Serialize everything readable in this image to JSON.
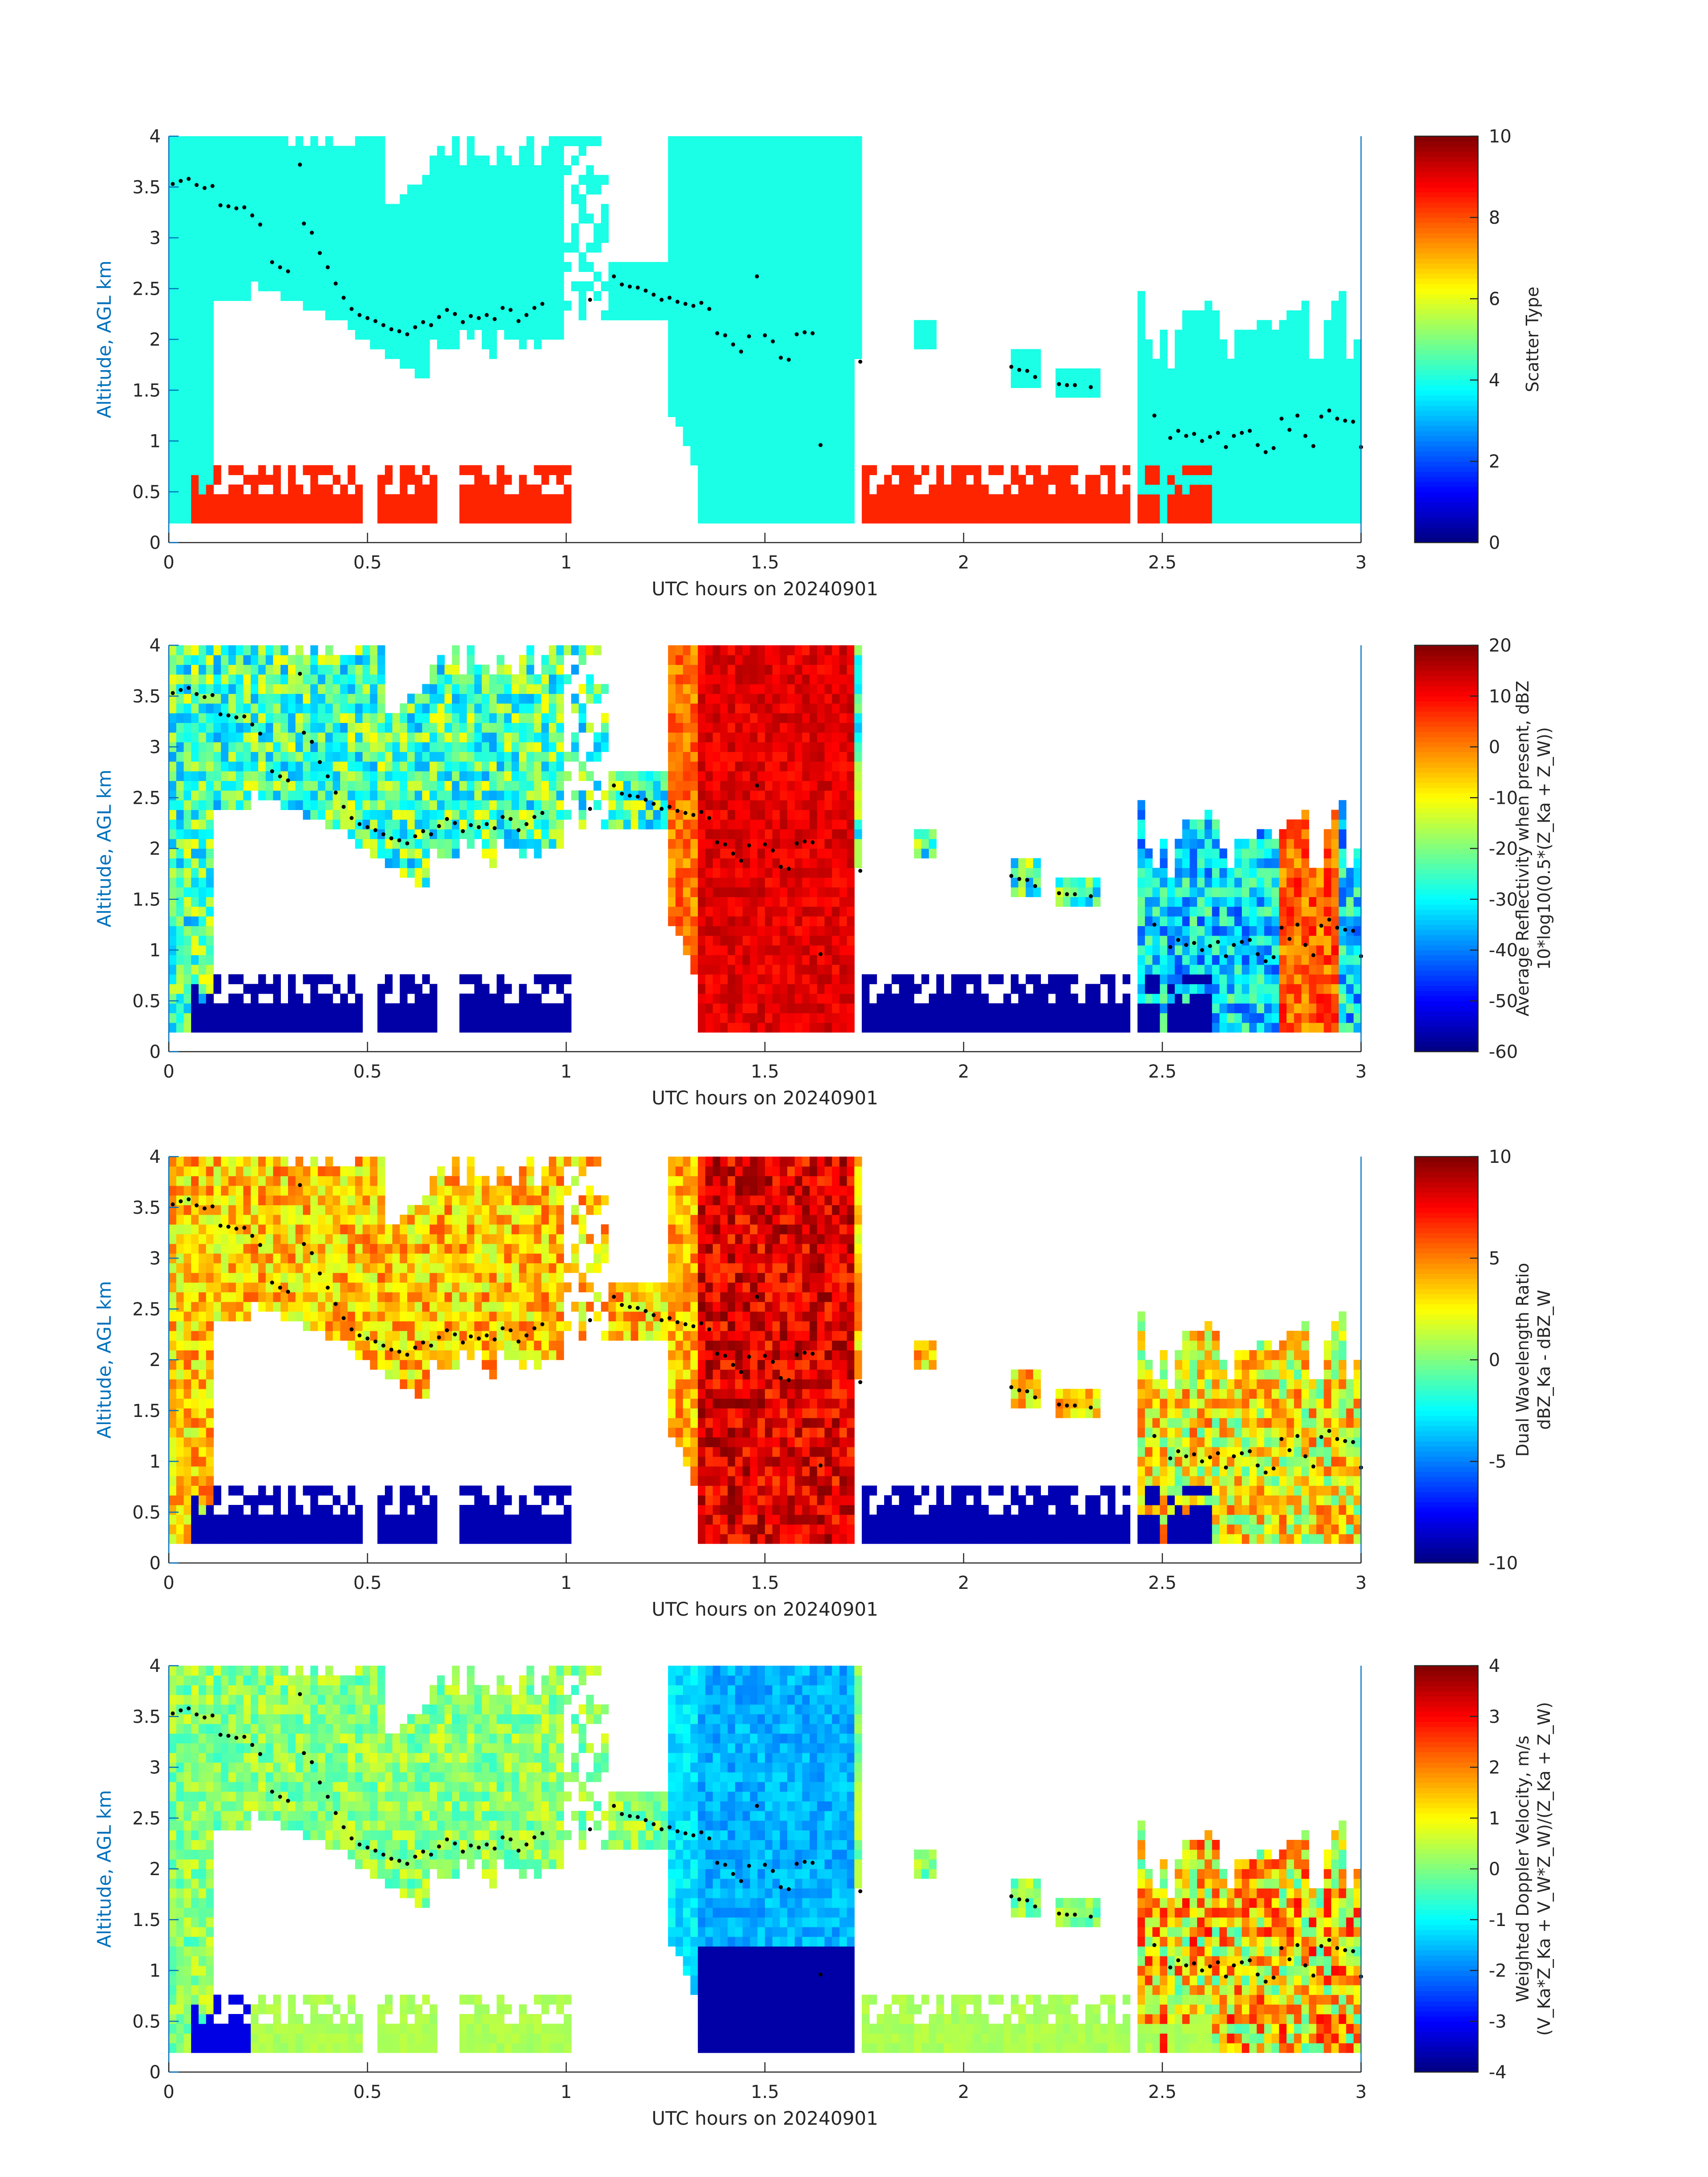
{
  "chart_data": [
    {
      "type": "heatmap",
      "xlabel": "UTC hours on 20240901",
      "ylabel": "Altitude, AGL km",
      "xlim": [
        0,
        3
      ],
      "ylim": [
        0,
        4
      ],
      "xticks": [
        "0",
        "0.5",
        "1",
        "1.5",
        "2",
        "2.5",
        "3"
      ],
      "yticks": [
        "0",
        "0.5",
        "1",
        "1.5",
        "2",
        "2.5",
        "3",
        "3.5",
        "4"
      ],
      "colorbar": {
        "label_lines": [
          "Scatter Type"
        ],
        "limits": [
          0,
          10
        ],
        "ticks": [
          "0",
          "2",
          "4",
          "6",
          "8",
          "10"
        ]
      },
      "field": "scatter"
    },
    {
      "type": "heatmap",
      "xlabel": "UTC hours on 20240901",
      "ylabel": "Altitude, AGL km",
      "xlim": [
        0,
        3
      ],
      "ylim": [
        0,
        4
      ],
      "xticks": [
        "0",
        "0.5",
        "1",
        "1.5",
        "2",
        "2.5",
        "3"
      ],
      "yticks": [
        "0",
        "0.5",
        "1",
        "1.5",
        "2",
        "2.5",
        "3",
        "3.5",
        "4"
      ],
      "colorbar": {
        "label_lines": [
          "Average Reflectivity when present, dBZ",
          "10*log10(0.5*(Z_Ka + Z_W))"
        ],
        "limits": [
          -60,
          20
        ],
        "ticks": [
          "-60",
          "-50",
          "-40",
          "-30",
          "-20",
          "-10",
          "0",
          "10",
          "20"
        ]
      },
      "field": "reflectivity"
    },
    {
      "type": "heatmap",
      "xlabel": "UTC hours on 20240901",
      "ylabel": "Altitude, AGL km",
      "xlim": [
        0,
        3
      ],
      "ylim": [
        0,
        4
      ],
      "xticks": [
        "0",
        "0.5",
        "1",
        "1.5",
        "2",
        "2.5",
        "3"
      ],
      "yticks": [
        "0",
        "0.5",
        "1",
        "1.5",
        "2",
        "2.5",
        "3",
        "3.5",
        "4"
      ],
      "colorbar": {
        "label_lines": [
          "Dual Wavelength Ratio",
          "dBZ_Ka - dBZ_W"
        ],
        "limits": [
          -10,
          10
        ],
        "ticks": [
          "-10",
          "-5",
          "0",
          "5",
          "10"
        ]
      },
      "field": "dwr"
    },
    {
      "type": "heatmap",
      "xlabel": "UTC hours on 20240901",
      "ylabel": "Altitude, AGL km",
      "xlim": [
        0,
        3
      ],
      "ylim": [
        0,
        4
      ],
      "xticks": [
        "0",
        "0.5",
        "1",
        "1.5",
        "2",
        "2.5",
        "3"
      ],
      "yticks": [
        "0",
        "0.5",
        "1",
        "1.5",
        "2",
        "2.5",
        "3",
        "3.5",
        "4"
      ],
      "colorbar": {
        "label_lines": [
          "Weighted Doppler Velocity, m/s",
          "(V_Ka*Z_Ka + V_W*Z_W)/(Z_Ka + Z_W)"
        ],
        "limits": [
          -4,
          4
        ],
        "ticks": [
          "-4",
          "-3",
          "-2",
          "-1",
          "0",
          "1",
          "2",
          "3",
          "4"
        ]
      },
      "field": "velocity"
    }
  ],
  "cloud_top_points": [
    [
      0.01,
      3.53
    ],
    [
      0.03,
      3.56
    ],
    [
      0.05,
      3.58
    ],
    [
      0.07,
      3.52
    ],
    [
      0.09,
      3.49
    ],
    [
      0.11,
      3.51
    ],
    [
      0.13,
      3.32
    ],
    [
      0.15,
      3.31
    ],
    [
      0.17,
      3.29
    ],
    [
      0.19,
      3.3
    ],
    [
      0.21,
      3.22
    ],
    [
      0.23,
      3.13
    ],
    [
      0.26,
      2.76
    ],
    [
      0.28,
      2.71
    ],
    [
      0.3,
      2.67
    ],
    [
      0.33,
      3.72
    ],
    [
      0.34,
      3.14
    ],
    [
      0.36,
      3.05
    ],
    [
      0.38,
      2.85
    ],
    [
      0.4,
      2.71
    ],
    [
      0.42,
      2.55
    ],
    [
      0.44,
      2.41
    ],
    [
      0.46,
      2.3
    ],
    [
      0.48,
      2.24
    ],
    [
      0.5,
      2.21
    ],
    [
      0.52,
      2.18
    ],
    [
      0.54,
      2.14
    ],
    [
      0.56,
      2.1
    ],
    [
      0.58,
      2.08
    ],
    [
      0.6,
      2.05
    ],
    [
      0.62,
      2.12
    ],
    [
      0.64,
      2.17
    ],
    [
      0.66,
      2.14
    ],
    [
      0.68,
      2.22
    ],
    [
      0.7,
      2.29
    ],
    [
      0.72,
      2.25
    ],
    [
      0.74,
      2.17
    ],
    [
      0.76,
      2.23
    ],
    [
      0.78,
      2.21
    ],
    [
      0.8,
      2.24
    ],
    [
      0.82,
      2.2
    ],
    [
      0.84,
      2.31
    ],
    [
      0.86,
      2.29
    ],
    [
      0.88,
      2.18
    ],
    [
      0.9,
      2.24
    ],
    [
      0.92,
      2.31
    ],
    [
      0.94,
      2.35
    ],
    [
      1.06,
      2.39
    ],
    [
      1.12,
      2.62
    ],
    [
      1.14,
      2.54
    ],
    [
      1.16,
      2.52
    ],
    [
      1.18,
      2.51
    ],
    [
      1.2,
      2.48
    ],
    [
      1.22,
      2.44
    ],
    [
      1.24,
      2.39
    ],
    [
      1.26,
      2.41
    ],
    [
      1.28,
      2.37
    ],
    [
      1.3,
      2.35
    ],
    [
      1.32,
      2.33
    ],
    [
      1.34,
      2.36
    ],
    [
      1.36,
      2.3
    ],
    [
      1.38,
      2.06
    ],
    [
      1.4,
      2.04
    ],
    [
      1.42,
      1.95
    ],
    [
      1.44,
      1.88
    ],
    [
      1.46,
      2.03
    ],
    [
      1.48,
      2.62
    ],
    [
      1.5,
      2.04
    ],
    [
      1.52,
      1.98
    ],
    [
      1.54,
      1.82
    ],
    [
      1.56,
      1.8
    ],
    [
      1.58,
      2.05
    ],
    [
      1.6,
      2.07
    ],
    [
      1.62,
      2.06
    ],
    [
      1.64,
      0.96
    ],
    [
      1.74,
      1.78
    ],
    [
      2.12,
      1.73
    ],
    [
      2.14,
      1.7
    ],
    [
      2.16,
      1.69
    ],
    [
      2.18,
      1.63
    ],
    [
      2.24,
      1.56
    ],
    [
      2.26,
      1.55
    ],
    [
      2.28,
      1.55
    ],
    [
      2.32,
      1.53
    ],
    [
      2.48,
      1.25
    ],
    [
      2.52,
      1.03
    ],
    [
      2.54,
      1.1
    ],
    [
      2.56,
      1.05
    ],
    [
      2.58,
      1.07
    ],
    [
      2.6,
      1.0
    ],
    [
      2.62,
      1.04
    ],
    [
      2.64,
      1.08
    ],
    [
      2.66,
      0.94
    ],
    [
      2.68,
      1.05
    ],
    [
      2.7,
      1.08
    ],
    [
      2.72,
      1.1
    ],
    [
      2.74,
      0.96
    ],
    [
      2.76,
      0.89
    ],
    [
      2.78,
      0.93
    ],
    [
      2.8,
      1.22
    ],
    [
      2.82,
      1.11
    ],
    [
      2.84,
      1.25
    ],
    [
      2.86,
      1.05
    ],
    [
      2.88,
      0.95
    ],
    [
      2.9,
      1.24
    ],
    [
      2.92,
      1.3
    ],
    [
      2.94,
      1.22
    ],
    [
      2.96,
      1.2
    ],
    [
      2.98,
      1.19
    ],
    [
      3.0,
      0.94
    ]
  ]
}
